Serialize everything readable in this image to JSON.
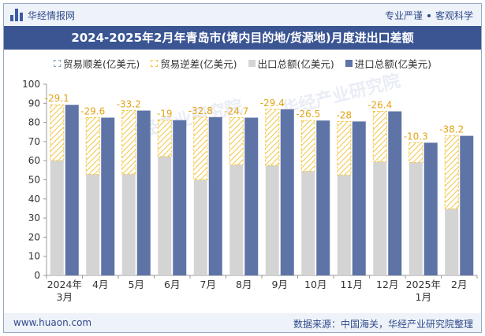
{
  "header": {
    "brand": "华经情报网",
    "tag_left": "专业严谨",
    "tag_right": "客观科学"
  },
  "title": "2024-2025年2月年青岛市(境内目的地/货源地)月度进出口差额",
  "legend": {
    "shun": "贸易顺差(亿美元)",
    "ni": "贸易逆差(亿美元)",
    "export": "出口总额(亿美元)",
    "import": "进口总额(亿美元)"
  },
  "footer": {
    "left": "www.huaon.com",
    "right": "数据来源：中国海关，华经产业研究院整理"
  },
  "watermark": "华经产业研究院",
  "colors": {
    "export": "#d4d4d4",
    "import": "#5e73a6",
    "deficit": "#f2c542",
    "label": "#e3a417"
  },
  "chart_data": {
    "type": "bar",
    "categories": [
      [
        "2024年",
        "3月"
      ],
      [
        "4月"
      ],
      [
        "5月"
      ],
      [
        "6月"
      ],
      [
        "7月"
      ],
      [
        "8月"
      ],
      [
        "9月"
      ],
      [
        "10月"
      ],
      [
        "11月"
      ],
      [
        "12月"
      ],
      [
        "2025年",
        "1月"
      ],
      [
        "2月"
      ]
    ],
    "series": [
      {
        "name": "出口总额(亿美元)",
        "values": [
          60.1,
          52.9,
          53.0,
          62.2,
          50.0,
          57.8,
          57.5,
          54.5,
          52.5,
          59.4,
          59.1,
          34.8
        ]
      },
      {
        "name": "进口总额(亿美元)",
        "values": [
          89.2,
          82.5,
          86.2,
          81.2,
          82.8,
          82.5,
          86.9,
          81.0,
          80.5,
          85.8,
          69.4,
          73.0
        ]
      },
      {
        "name": "贸易逆差(亿美元)",
        "values": [
          -29.1,
          -29.6,
          -33.2,
          -19,
          -32.8,
          -24.7,
          -29.4,
          -26.5,
          -28,
          -26.4,
          -10.3,
          -38.2
        ]
      }
    ],
    "data_labels": [
      "-29.1",
      "-29.6",
      "-33.2",
      "-19",
      "-32.8",
      "-24.7",
      "-29.4",
      "-26.5",
      "-28",
      "-26.4",
      "-10.3",
      "-38.2"
    ],
    "ylim": [
      0,
      100
    ],
    "yticks": [
      0,
      10,
      20,
      30,
      40,
      50,
      60,
      70,
      80,
      90,
      100
    ],
    "grid": false,
    "legend_position": "top"
  }
}
